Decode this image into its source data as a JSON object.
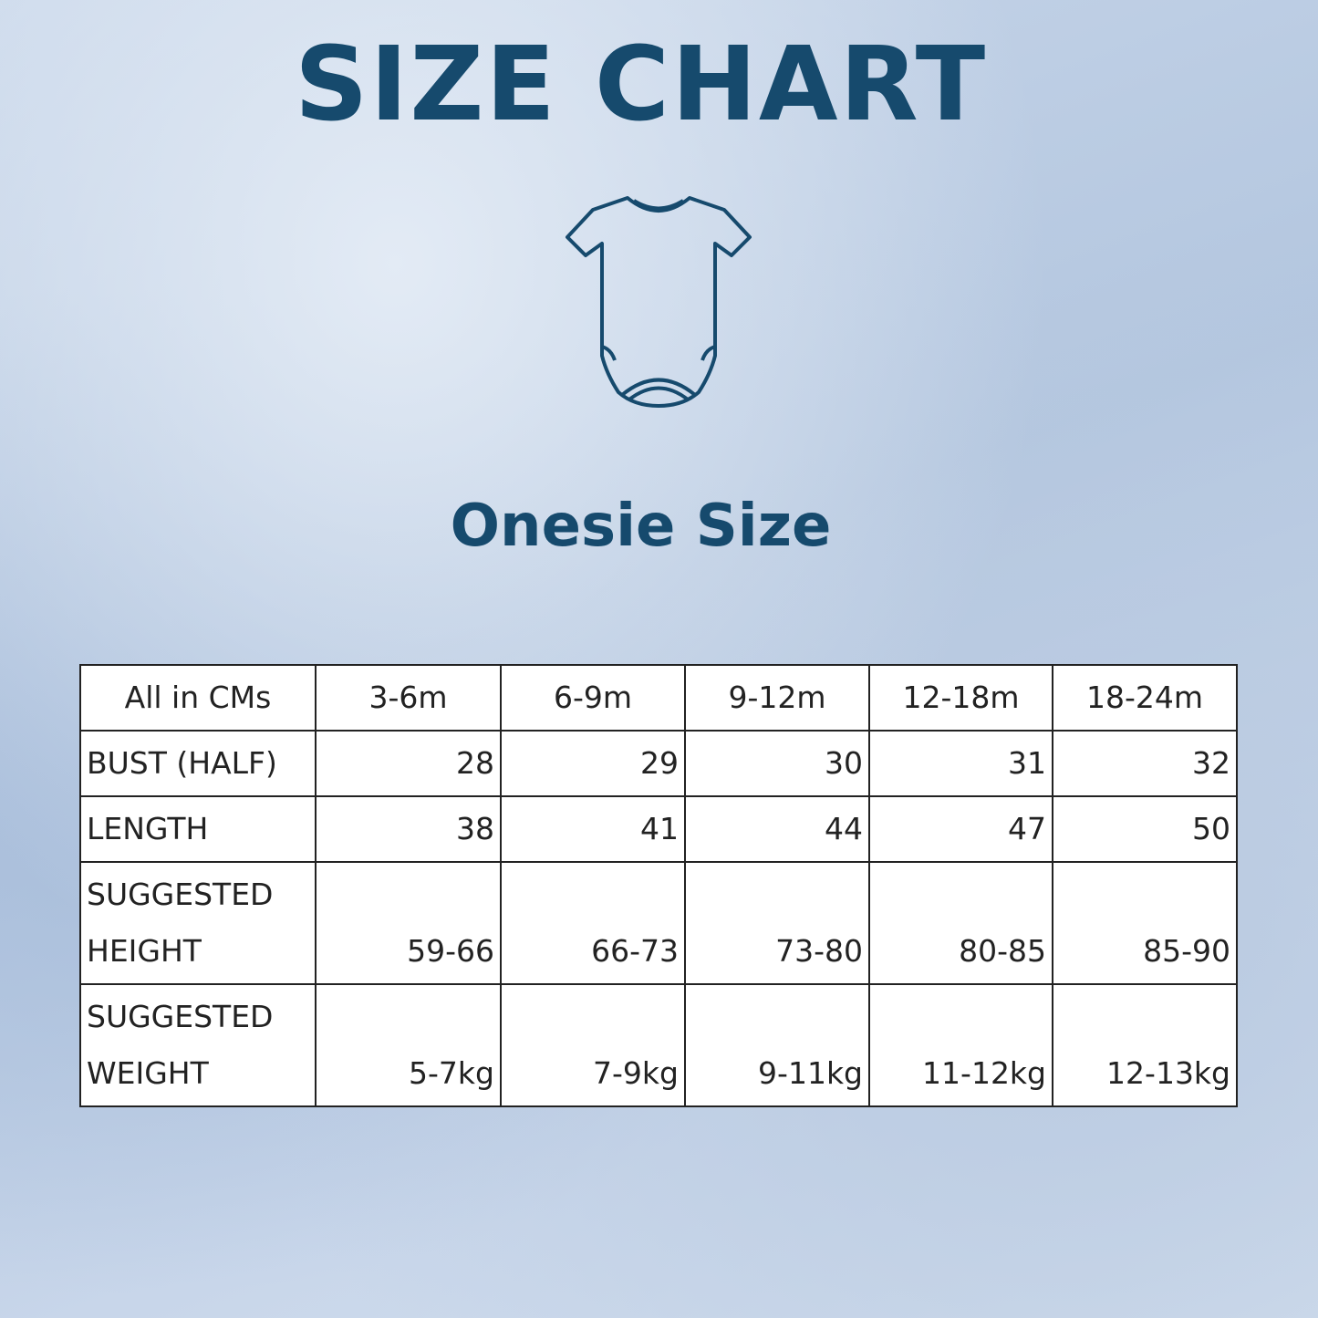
{
  "header": {
    "title": "SIZE CHART",
    "subtitle": "Onesie Size"
  },
  "table": {
    "columns": [
      "All in CMs",
      "3-6m",
      "6-9m",
      "9-12m",
      "12-18m",
      "18-24m"
    ],
    "rows": [
      {
        "label": [
          "BUST (HALF)"
        ],
        "values": [
          "28",
          "29",
          "30",
          "31",
          "32"
        ]
      },
      {
        "label": [
          "LENGTH"
        ],
        "values": [
          "38",
          "41",
          "44",
          "47",
          "50"
        ]
      },
      {
        "label": [
          "SUGGESTED",
          "HEIGHT"
        ],
        "values": [
          "59-66",
          "66-73",
          "73-80",
          "80-85",
          "85-90"
        ]
      },
      {
        "label": [
          "SUGGESTED",
          "WEIGHT"
        ],
        "values": [
          "5-7kg",
          "7-9kg",
          "9-11kg",
          "11-12kg",
          "12-13kg"
        ]
      }
    ]
  }
}
